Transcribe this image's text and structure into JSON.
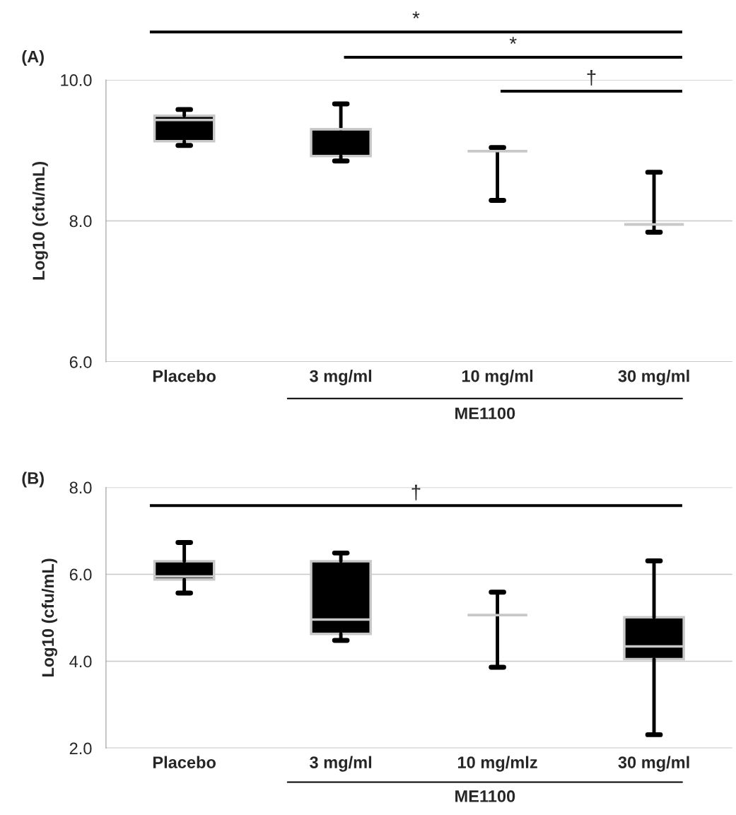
{
  "chart_data": [
    {
      "type": "box",
      "title": "(A)",
      "ylabel": "Log10 (cfu/mL)",
      "categories": [
        "Placebo",
        "3 mg/ml",
        "10 mg/ml",
        "30 mg/ml"
      ],
      "boxes": [
        {
          "low": 9.07,
          "q1": 9.13,
          "median": 9.43,
          "q3": 9.49,
          "high": 9.58
        },
        {
          "low": 8.85,
          "q1": 8.92,
          "median": 9.3,
          "q3": 9.3,
          "high": 9.66
        },
        {
          "low": 8.29,
          "q1": 8.99,
          "median": 8.99,
          "q3": 8.99,
          "high": 9.04
        },
        {
          "low": 7.84,
          "q1": 7.95,
          "median": 7.95,
          "q3": 7.95,
          "high": 8.69
        }
      ],
      "ylim": [
        6,
        10
      ],
      "yticks": [
        {
          "value": 6,
          "label": "6.0"
        },
        {
          "value": 8,
          "label": "8.0"
        },
        {
          "value": 10,
          "label": "10.0"
        }
      ],
      "grid": "y",
      "annotations": [
        "*",
        "*",
        "†",
        "ME1100"
      ]
    },
    {
      "type": "box",
      "title": "(B)",
      "ylabel": "Log10 (cfu/mL)",
      "categories": [
        "Placebo",
        "3 mg/ml",
        "10 mg/mlz",
        "30 mg/ml"
      ],
      "boxes": [
        {
          "low": 5.57,
          "q1": 5.88,
          "median": 5.95,
          "q3": 6.3,
          "high": 6.73
        },
        {
          "low": 4.48,
          "q1": 4.63,
          "median": 4.96,
          "q3": 6.3,
          "high": 6.49
        },
        {
          "low": 3.86,
          "q1": 5.06,
          "median": 5.06,
          "q3": 5.06,
          "high": 5.59
        },
        {
          "low": 2.31,
          "q1": 4.05,
          "median": 4.34,
          "q3": 5.01,
          "high": 6.31
        }
      ],
      "ylim": [
        2,
        8
      ],
      "yticks": [
        {
          "value": 2,
          "label": "2.0"
        },
        {
          "value": 4,
          "label": "4.0"
        },
        {
          "value": 6,
          "label": "6.0"
        },
        {
          "value": 8,
          "label": "8.0"
        }
      ],
      "grid": "y",
      "annotations": [
        "†",
        "ME1100"
      ]
    }
  ]
}
